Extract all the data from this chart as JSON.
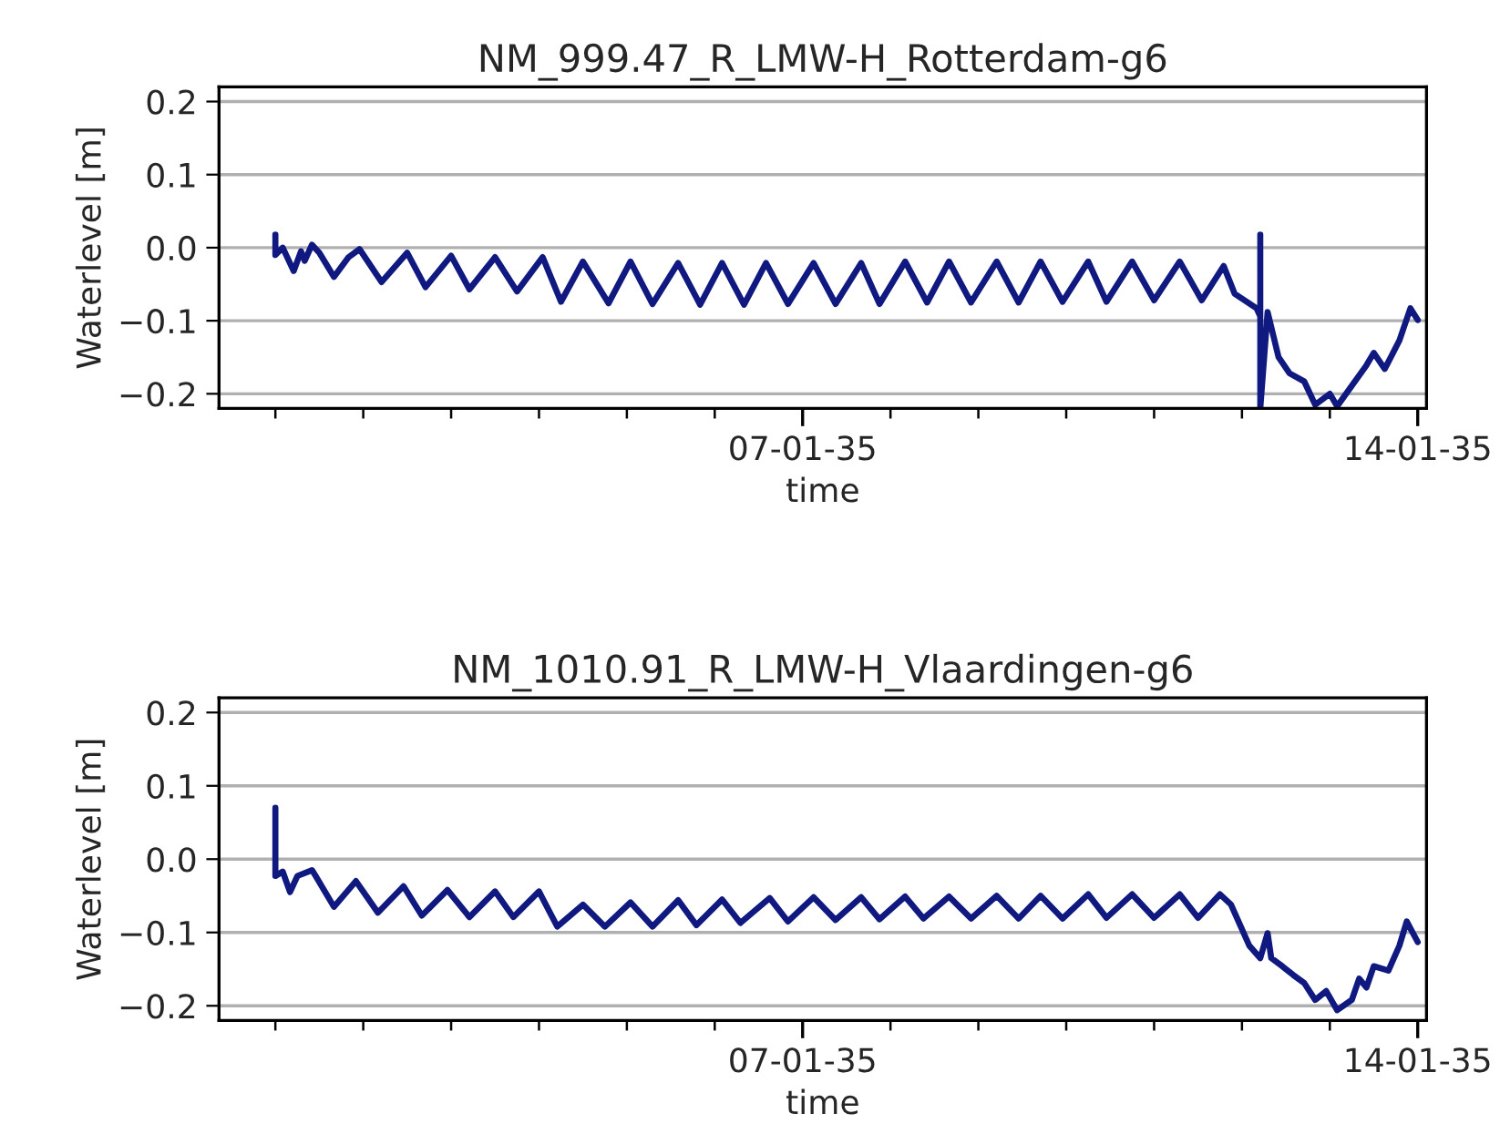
{
  "chart_data": [
    {
      "type": "line",
      "title": "NM_999.47_R_LMW-H_Rotterdam-g6",
      "xlabel": "time",
      "ylabel": "Waterlevel [m]",
      "grid": "y",
      "line_style": "solid",
      "marker": "none",
      "xlim": [
        "2034-12-31T08:36",
        "2035-01-14T02:24"
      ],
      "ylim": [
        -0.22,
        0.22
      ],
      "xticks": [
        {
          "value": "2035-01-01",
          "label": null
        },
        {
          "value": "2035-01-02",
          "label": null
        },
        {
          "value": "2035-01-03",
          "label": null
        },
        {
          "value": "2035-01-04",
          "label": null
        },
        {
          "value": "2035-01-05",
          "label": null
        },
        {
          "value": "2035-01-06",
          "label": null
        },
        {
          "value": "2035-01-07",
          "label": "07-01-35"
        },
        {
          "value": "2035-01-08",
          "label": null
        },
        {
          "value": "2035-01-09",
          "label": null
        },
        {
          "value": "2035-01-10",
          "label": null
        },
        {
          "value": "2035-01-11",
          "label": null
        },
        {
          "value": "2035-01-12",
          "label": null
        },
        {
          "value": "2035-01-13",
          "label": null
        },
        {
          "value": "2035-01-14",
          "label": "14-01-35"
        }
      ],
      "yticks": [
        {
          "value": -0.2,
          "label": "−0.2"
        },
        {
          "value": -0.1,
          "label": "−0.1"
        },
        {
          "value": 0.0,
          "label": "0.0"
        },
        {
          "value": 0.1,
          "label": "0.1"
        },
        {
          "value": 0.2,
          "label": "0.2"
        }
      ],
      "series": [
        {
          "color": "#10197f",
          "x": [
            "2035-01-01T00:00",
            "2035-01-01T00:00",
            "2035-01-01T02:00",
            "2035-01-01T05:00",
            "2035-01-01T07:00",
            "2035-01-01T08:00",
            "2035-01-01T10:00",
            "2035-01-01T12:00",
            "2035-01-01T16:00",
            "2035-01-01T20:00",
            "2035-01-01T23:00",
            "2035-01-02T05:00",
            "2035-01-02T12:00",
            "2035-01-02T17:00",
            "2035-01-03T00:00",
            "2035-01-03T05:00",
            "2035-01-03T12:00",
            "2035-01-03T18:00",
            "2035-01-04T01:00",
            "2035-01-04T06:00",
            "2035-01-04T12:00",
            "2035-01-04T19:00",
            "2035-01-05T01:00",
            "2035-01-05T07:00",
            "2035-01-05T14:00",
            "2035-01-05T20:00",
            "2035-01-06T02:00",
            "2035-01-06T08:00",
            "2035-01-06T14:00",
            "2035-01-06T20:00",
            "2035-01-07T03:00",
            "2035-01-07T09:00",
            "2035-01-07T16:00",
            "2035-01-07T21:00",
            "2035-01-08T04:00",
            "2035-01-08T10:00",
            "2035-01-08T16:00",
            "2035-01-08T22:00",
            "2035-01-09T05:00",
            "2035-01-09T11:00",
            "2035-01-09T17:00",
            "2035-01-09T23:00",
            "2035-01-10T06:00",
            "2035-01-10T11:00",
            "2035-01-10T18:00",
            "2035-01-11T00:00",
            "2035-01-11T07:00",
            "2035-01-11T13:00",
            "2035-01-11T19:00",
            "2035-01-11T22:00",
            "2035-01-12T04:00",
            "2035-01-12T05:00",
            "2035-01-12T05:00",
            "2035-01-12T05:00",
            "2035-01-12T07:00",
            "2035-01-12T10:00",
            "2035-01-12T13:00",
            "2035-01-12T17:00",
            "2035-01-12T20:00",
            "2035-01-13T00:00",
            "2035-01-13T02:00",
            "2035-01-13T06:00",
            "2035-01-13T10:00",
            "2035-01-13T12:00",
            "2035-01-13T15:00",
            "2035-01-13T19:00",
            "2035-01-13T22:00",
            "2035-01-14T00:00"
          ],
          "values": [
            0.018,
            -0.01,
            0.0,
            -0.032,
            -0.005,
            -0.018,
            0.004,
            -0.007,
            -0.04,
            -0.013,
            -0.002,
            -0.047,
            -0.007,
            -0.054,
            -0.011,
            -0.057,
            -0.013,
            -0.06,
            -0.013,
            -0.074,
            -0.019,
            -0.076,
            -0.019,
            -0.077,
            -0.021,
            -0.078,
            -0.021,
            -0.078,
            -0.021,
            -0.077,
            -0.021,
            -0.077,
            -0.021,
            -0.077,
            -0.019,
            -0.075,
            -0.019,
            -0.075,
            -0.019,
            -0.075,
            -0.019,
            -0.074,
            -0.019,
            -0.074,
            -0.019,
            -0.072,
            -0.019,
            -0.072,
            -0.025,
            -0.063,
            -0.083,
            -0.094,
            0.018,
            -0.22,
            -0.088,
            -0.15,
            -0.172,
            -0.183,
            -0.215,
            -0.2,
            -0.217,
            -0.189,
            -0.161,
            -0.144,
            -0.166,
            -0.127,
            -0.083,
            -0.099
          ]
        }
      ]
    },
    {
      "type": "line",
      "title": "NM_1010.91_R_LMW-H_Vlaardingen-g6",
      "xlabel": "time",
      "ylabel": "Waterlevel [m]",
      "grid": "y",
      "line_style": "solid",
      "marker": "none",
      "xlim": [
        "2034-12-31T08:36",
        "2035-01-14T02:24"
      ],
      "ylim": [
        -0.22,
        0.22
      ],
      "xticks": [
        {
          "value": "2035-01-01",
          "label": null
        },
        {
          "value": "2035-01-02",
          "label": null
        },
        {
          "value": "2035-01-03",
          "label": null
        },
        {
          "value": "2035-01-04",
          "label": null
        },
        {
          "value": "2035-01-05",
          "label": null
        },
        {
          "value": "2035-01-06",
          "label": null
        },
        {
          "value": "2035-01-07",
          "label": "07-01-35"
        },
        {
          "value": "2035-01-08",
          "label": null
        },
        {
          "value": "2035-01-09",
          "label": null
        },
        {
          "value": "2035-01-10",
          "label": null
        },
        {
          "value": "2035-01-11",
          "label": null
        },
        {
          "value": "2035-01-12",
          "label": null
        },
        {
          "value": "2035-01-13",
          "label": null
        },
        {
          "value": "2035-01-14",
          "label": "14-01-35"
        }
      ],
      "yticks": [
        {
          "value": -0.2,
          "label": "−0.2"
        },
        {
          "value": -0.1,
          "label": "−0.1"
        },
        {
          "value": 0.0,
          "label": "0.0"
        },
        {
          "value": 0.1,
          "label": "0.1"
        },
        {
          "value": 0.2,
          "label": "0.2"
        }
      ],
      "series": [
        {
          "color": "#10197f",
          "x": [
            "2035-01-01T00:00",
            "2035-01-01T00:00",
            "2035-01-01T02:00",
            "2035-01-01T04:00",
            "2035-01-01T06:00",
            "2035-01-01T10:00",
            "2035-01-01T11:00",
            "2035-01-01T16:00",
            "2035-01-01T22:00",
            "2035-01-02T04:00",
            "2035-01-02T11:00",
            "2035-01-02T16:00",
            "2035-01-02T23:00",
            "2035-01-03T05:00",
            "2035-01-03T12:00",
            "2035-01-03T17:00",
            "2035-01-04T00:00",
            "2035-01-04T03:00",
            "2035-01-04T05:00",
            "2035-01-04T12:00",
            "2035-01-04T18:00",
            "2035-01-05T01:00",
            "2035-01-05T07:00",
            "2035-01-05T14:00",
            "2035-01-05T19:00",
            "2035-01-06T02:00",
            "2035-01-06T07:00",
            "2035-01-06T15:00",
            "2035-01-06T20:00",
            "2035-01-07T03:00",
            "2035-01-07T09:00",
            "2035-01-07T16:00",
            "2035-01-07T21:00",
            "2035-01-08T04:00",
            "2035-01-08T09:00",
            "2035-01-08T16:00",
            "2035-01-08T22:00",
            "2035-01-09T05:00",
            "2035-01-09T11:00",
            "2035-01-09T17:00",
            "2035-01-09T23:00",
            "2035-01-10T06:00",
            "2035-01-10T11:00",
            "2035-01-10T18:00",
            "2035-01-11T00:00",
            "2035-01-11T07:00",
            "2035-01-11T12:00",
            "2035-01-11T18:00",
            "2035-01-11T21:00",
            "2035-01-12T02:00",
            "2035-01-12T05:00",
            "2035-01-12T07:00",
            "2035-01-12T08:00",
            "2035-01-12T11:00",
            "2035-01-12T14:00",
            "2035-01-12T17:00",
            "2035-01-12T20:00",
            "2035-01-12T23:00",
            "2035-01-13T02:00",
            "2035-01-13T06:00",
            "2035-01-13T08:00",
            "2035-01-13T10:00",
            "2035-01-13T12:00",
            "2035-01-13T16:00",
            "2035-01-13T19:00",
            "2035-01-13T21:00",
            "2035-01-14T00:00"
          ],
          "values": [
            0.07,
            -0.023,
            -0.017,
            -0.045,
            -0.023,
            -0.015,
            -0.023,
            -0.065,
            -0.03,
            -0.073,
            -0.037,
            -0.077,
            -0.042,
            -0.079,
            -0.044,
            -0.079,
            -0.044,
            -0.073,
            -0.092,
            -0.062,
            -0.092,
            -0.059,
            -0.092,
            -0.056,
            -0.09,
            -0.055,
            -0.087,
            -0.053,
            -0.085,
            -0.052,
            -0.083,
            -0.052,
            -0.082,
            -0.051,
            -0.081,
            -0.051,
            -0.081,
            -0.05,
            -0.081,
            -0.05,
            -0.081,
            -0.048,
            -0.08,
            -0.048,
            -0.08,
            -0.048,
            -0.08,
            -0.048,
            -0.062,
            -0.118,
            -0.135,
            -0.101,
            -0.135,
            -0.146,
            -0.158,
            -0.169,
            -0.192,
            -0.18,
            -0.206,
            -0.192,
            -0.163,
            -0.175,
            -0.146,
            -0.152,
            -0.118,
            -0.085,
            -0.113
          ]
        }
      ]
    }
  ]
}
